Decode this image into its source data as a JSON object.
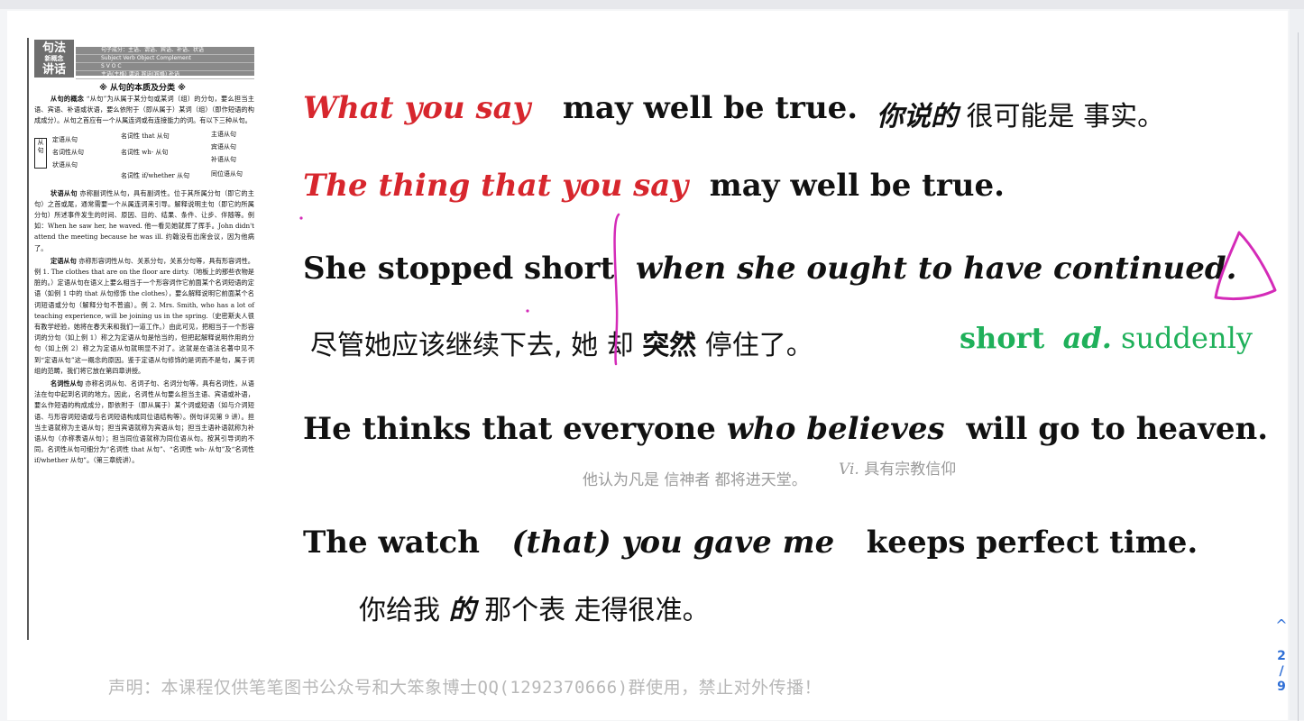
{
  "viewer": {
    "page_current": "2",
    "page_separator": "/",
    "page_total": "9",
    "nav_up_glyph": "^"
  },
  "scan": {
    "logo_line1": "句法",
    "logo_line2": "新概念",
    "logo_line3": "讲话",
    "header_rows": [
      "句子成分：主语、谓语、宾语、补语、状语",
      "Subject    Verb    Object    Complement",
      "S     V     O     C",
      "主语(主格)   谓语   宾语(宾格)   补语"
    ],
    "title": "※ 从句的本质及分类 ※",
    "p1_head": "从句的概念",
    "p1": "“从句”为从属于某分句或某词（组）的分句，要么担当主语、宾语、补语或状语，要么依附于（即从属于）某词（组）（即作短语的构成成分）。从句之首应有一个从属连词或有连接能力的词。有以下三种从句。",
    "tree_root": "从句",
    "tree_left": [
      "定语从句",
      "名词性从句",
      "状语从句"
    ],
    "tree_mid": [
      "名词性 that 从句",
      "名词性 wh- 从句",
      "名词性 if/whether 从句"
    ],
    "tree_right": [
      "主语从句",
      "宾语从句",
      "补语从句",
      "同位语从句"
    ],
    "p2_head": "状语从句",
    "p2": "亦称副词性从句，具有副词性。位于其所属分句（即它的主句）之首或尾，通常需要一个从属连词来引导。解释说明主句（即它的所属分句）所述事件发生的时间、原因、目的、结果、条件、让步、伴随等。例如：When he saw her, he waved. 他一看见她就挥了挥手。John didn't attend the meeting because he was ill. 约翰没有出席会议，因为他病了。",
    "p3_head": "定语从句",
    "p3": "亦称形容词性从句、关系分句，关系分句等，具有形容词性。例 1. The clothes that are on the floor are dirty.（地板上的那些衣物是脏的。）定语从句在语义上要么相当于一个形容词作它前面某个名词短语的定语（如例 1 中的 that 从句修饰 the clothes），要么解释说明它前面某个名词短语或分句（解释分句不普遍）。例 2. Mrs. Smith, who has a lot of teaching experience, will be joining us in the spring.（史密斯夫人很有教学经验，她将在春天来和我们一道工作。）由此可见，把相当于一个形容词的分句（如上例 1）称之为定语从句是恰当的，但把起解释说明作用的分句（如上例 2）称之为定语从句就明显不对了。这就是在语法名著中见不到“定语从句”这一概念的原因。鉴于定语从句修饰的是词而不是句，属于词组的范畴，我们将它放在第四章讲授。",
    "p4_head": "名词性从句",
    "p4": "亦称名词从句、名词子句、名词分句等，具有名词性，从语法在句中起到名词的地方。因此，名词性从句要么担当主语、宾语或补语，要么作短语的构成成分，即依附于（即从属于）某个词或短语（如与介词短语、与形容词短语或与名词短语构成同位语结构等）。例句详见第 9 讲）。担当主语就称为主语从句；担当宾语就称为宾语从句；担当主语补语就称为补语从句（亦称表语从句）；担当同位语就称为同位语从句。按其引导词的不同，名词性从句可细分为“名词性 that 从句”、“名词性 wh- 从句”及“名词性 if/whether 从句”。（第三章统讲）。"
  },
  "sentences": {
    "s1_red": "What  you say",
    "s1_rest": "may well be  true.",
    "s1_zh_bold": "你说的",
    "s1_zh_rest": "很可能是 事实。",
    "s2_red": "The thing that you say",
    "s2_rest": "may well be  true.",
    "s3_main": "She  stopped  short",
    "s3_clause": "when  she  ought to have continued.",
    "s3_zh1": "尽管她应该继续下去,",
    "s3_zh2": "她 却",
    "s3_zh_bold": "突然",
    "s3_zh3": "停住了。",
    "s3_note_word": "short",
    "s3_note_pos": "ad.",
    "s3_note_meaning": "suddenly",
    "s4_a": "He   thinks   that everyone",
    "s4_italic": "who believes",
    "s4_b": "will go   to heaven.",
    "s4_gloss": "他认为凡是 信神者 都将进天堂。",
    "s4_vi": "Vi.",
    "s4_vi_meaning": "具有宗教信仰",
    "s5_a": "The watch",
    "s5_italic": "(that)  you  gave  me",
    "s5_b": "keeps   perfect time.",
    "s5_zh1": "你给我",
    "s5_zh_bold": "的",
    "s5_zh2": "那个表 走得很准。"
  },
  "footer": {
    "text": "声明：本课程仅供笔笔图书公众号和大笨象博士QQ(1292370666)群使用，禁止对外传播！"
  },
  "colors": {
    "red": "#d7262d",
    "green": "#1fb05a",
    "ink": "#d42bb8",
    "accent": "#2f6fd6"
  }
}
